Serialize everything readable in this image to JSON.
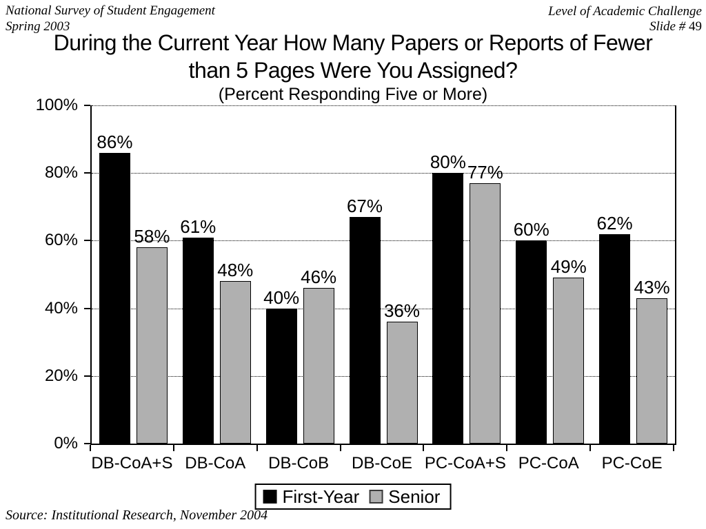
{
  "header": {
    "top_left_line1": "National Survey of Student Engagement",
    "top_left_line2": "Spring 2003",
    "top_right_line1": "Level of Academic Challenge",
    "slide_label": "Slide # ",
    "slide_number": "49"
  },
  "title_line1": "During the Current Year How Many Papers or Reports of Fewer",
  "title_line2": "than 5 Pages Were You Assigned?",
  "subtitle": "(Percent Responding Five or More)",
  "footer": {
    "source": "Source: Institutional Research, November 2004"
  },
  "chart_data": {
    "type": "bar",
    "categories": [
      "DB-CoA+S",
      "DB-CoA",
      "DB-CoB",
      "DB-CoE",
      "PC-CoA+S",
      "PC-CoA",
      "PC-CoE"
    ],
    "series": [
      {
        "name": "First-Year",
        "color": "#000000",
        "values": [
          86,
          61,
          40,
          67,
          80,
          60,
          62
        ]
      },
      {
        "name": "Senior",
        "color": "#b0b0b0",
        "values": [
          58,
          48,
          46,
          36,
          77,
          49,
          43
        ]
      }
    ],
    "value_suffix": "%",
    "y_ticks": [
      "0%",
      "20%",
      "40%",
      "60%",
      "80%",
      "100%"
    ],
    "ylim": [
      0,
      100
    ],
    "grid": "dotted-horizontal",
    "legend_position": "bottom",
    "bar_border_color": "#000000",
    "background_color": "#ffffff"
  }
}
